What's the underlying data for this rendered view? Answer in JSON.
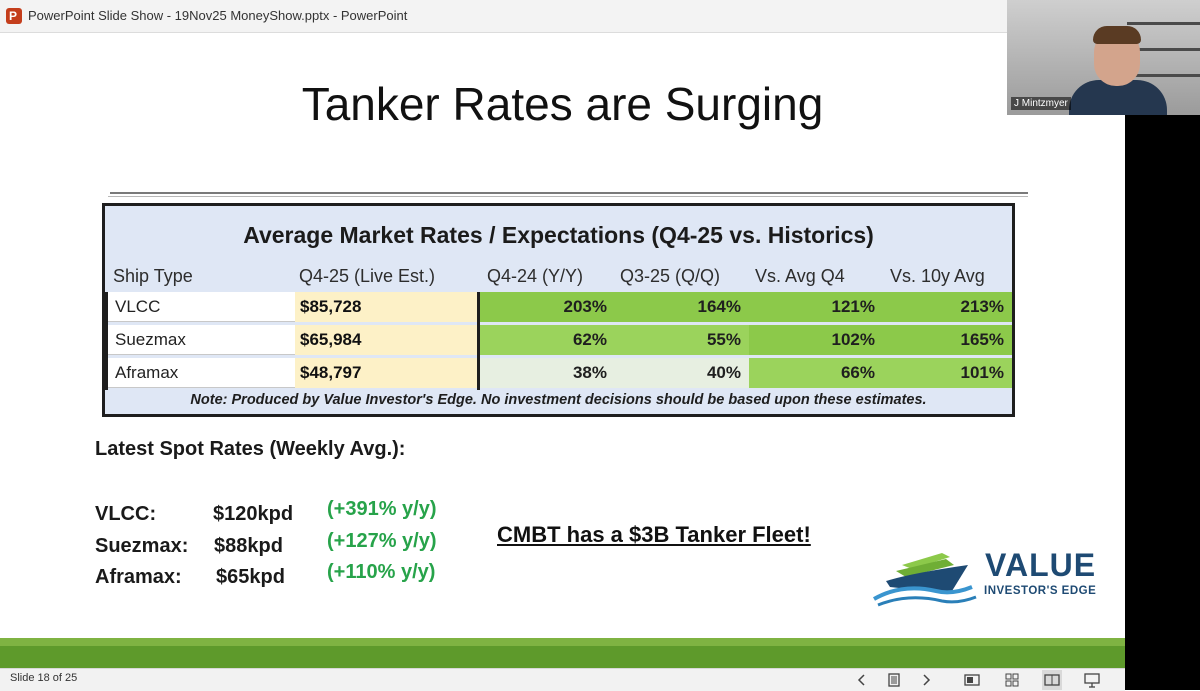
{
  "window": {
    "title": "PowerPoint Slide Show  -  19Nov25 MoneyShow.pptx - PowerPoint",
    "app_icon_letter": "P"
  },
  "slide": {
    "title": "Tanker Rates are Surging",
    "table": {
      "title": "Average Market Rates / Expectations (Q4-25 vs. Historics)",
      "headers": [
        "Ship Type",
        "Q4-25 (Live Est.)",
        "Q4-24 (Y/Y)",
        "Q3-25 (Q/Q)",
        "Vs. Avg Q4",
        "Vs. 10y Avg"
      ],
      "rows": [
        {
          "ship": "VLCC",
          "q4_25": "$85,728",
          "q4_24": "203%",
          "q3_25": "164%",
          "vs_avg_q4": "121%",
          "vs_10y": "213%"
        },
        {
          "ship": "Suezmax",
          "q4_25": "$65,984",
          "q4_24": "62%",
          "q3_25": "55%",
          "vs_avg_q4": "102%",
          "vs_10y": "165%"
        },
        {
          "ship": "Aframax",
          "q4_25": "$48,797",
          "q4_24": "38%",
          "q3_25": "40%",
          "vs_avg_q4": "66%",
          "vs_10y": "101%"
        }
      ],
      "note": "Note: Produced by Value Investor's Edge. No investment decisions should be based upon these estimates."
    },
    "spot": {
      "title": "Latest Spot Rates (Weekly Avg.):",
      "rows": [
        {
          "ship": "VLCC:",
          "rate": "$120kpd",
          "change": "(+391% y/y)"
        },
        {
          "ship": "Suezmax:",
          "rate": "$88kpd",
          "change": "(+127% y/y)"
        },
        {
          "ship": "Aframax:",
          "rate": "$65kpd",
          "change": "(+110% y/y)"
        }
      ]
    },
    "callout": "CMBT has a $3B Tanker Fleet!",
    "logo": {
      "word": "VALUE",
      "sub": "INVESTOR'S EDGE"
    }
  },
  "webcam": {
    "name": "J Mintzmyer"
  },
  "status": {
    "slide_label": "Slide 18 of 25"
  },
  "colors": {
    "green_strong": "#8cc94a",
    "green_light": "#e7efe1",
    "q4_highlight": "#fdf1c7",
    "table_bg": "#dfe7f5",
    "spot_change": "#27a34a",
    "footer_green": "#5e9a2b",
    "logo_blue": "#1e4a73"
  }
}
